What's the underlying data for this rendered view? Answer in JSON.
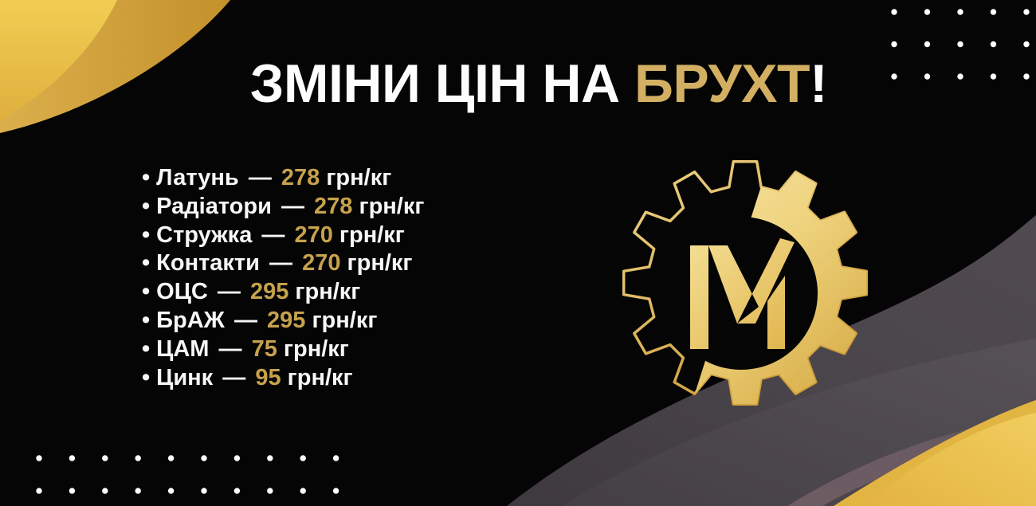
{
  "title": {
    "prefix": "ЗМІНИ ЦІН НА",
    "highlight": "БРУХТ",
    "suffix": "!"
  },
  "price_list": {
    "bullet": "•",
    "separator": "—",
    "unit": "грн/кг",
    "items": [
      {
        "label": "Латунь",
        "price": "278"
      },
      {
        "label": "Радіатори",
        "price": "278"
      },
      {
        "label": "Стружка",
        "price": "270"
      },
      {
        "label": "Контакти",
        "price": "270"
      },
      {
        "label": "ОЦС",
        "price": "295"
      },
      {
        "label": "БрАЖ",
        "price": "295"
      },
      {
        "label": "ЦАМ",
        "price": "75"
      },
      {
        "label": "Цинк",
        "price": "95"
      }
    ]
  },
  "logo": {
    "letter": "M"
  },
  "colors": {
    "background": "#050505",
    "title_gold": "#D2AF62",
    "price_gold": "#C7A24C",
    "bright_yellow": "#EFC94D",
    "dark_gold": "#C8962E",
    "gear_gold_light": "#F7E7AC",
    "gray_band": "#4A4549",
    "mauve_stripe": "#6E5C63",
    "dots": "#FFFFFF"
  }
}
